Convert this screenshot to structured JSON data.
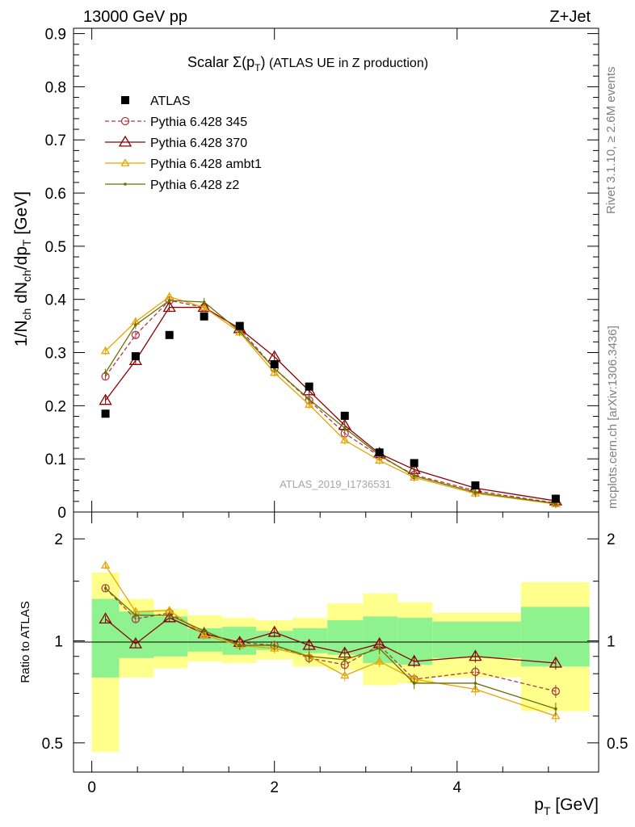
{
  "header": {
    "energy": "13000 GeV pp",
    "process": "Z+Jet"
  },
  "side_labels": {
    "rivet": "Rivet 3.1.10, ≥ 2.6M events",
    "mcplots": "mcplots.cern.ch [arXiv:1306.3436]"
  },
  "chart_data": [
    {
      "type": "scatter",
      "title_main": "Scalar Σ(p",
      "title_sub": "T",
      "title_close": ")",
      "title_rest": " (ATLAS UE in Z production)",
      "ylabel_parts": [
        "1/N",
        "ch",
        " dN",
        "ch",
        "/dp",
        "T",
        " [GeV]"
      ],
      "analysis_tag": "ATLAS_2019_I1736531",
      "xlim": [
        -0.2,
        5.55
      ],
      "ylim": [
        0,
        0.91
      ],
      "yticks": [
        0,
        0.1,
        0.2,
        0.3,
        0.4,
        0.5,
        0.6,
        0.7,
        0.8,
        0.9
      ],
      "ytick_labels": [
        "0",
        "0.1",
        "0.2",
        "0.3",
        "0.4",
        "0.5",
        "0.6",
        "0.7",
        "0.8",
        "0.9"
      ],
      "x": [
        0.15,
        0.48,
        0.85,
        1.23,
        1.62,
        2.0,
        2.38,
        2.77,
        3.15,
        3.53,
        4.2,
        5.08
      ],
      "data_name": "ATLAS",
      "data_values": [
        0.185,
        0.293,
        0.333,
        0.368,
        0.35,
        0.278,
        0.236,
        0.181,
        0.112,
        0.092,
        0.05,
        0.025
      ],
      "series": [
        {
          "name": "Pythia 6.428 345",
          "color": "#b03a48",
          "marker": "circle",
          "dashed": true,
          "values": [
            0.255,
            0.333,
            0.398,
            0.385,
            0.345,
            0.27,
            0.21,
            0.148,
            0.105,
            0.07,
            0.04,
            0.017
          ]
        },
        {
          "name": "Pythia 6.428 370",
          "color": "#8b0000",
          "marker": "triangle-big",
          "dashed": false,
          "values": [
            0.21,
            0.285,
            0.385,
            0.385,
            0.345,
            0.292,
            0.228,
            0.163,
            0.11,
            0.08,
            0.045,
            0.021
          ]
        },
        {
          "name": "Pythia 6.428 ambt1",
          "color": "#e8a400",
          "marker": "triangle",
          "dashed": false,
          "values": [
            0.303,
            0.358,
            0.405,
            0.385,
            0.338,
            0.262,
            0.202,
            0.135,
            0.097,
            0.065,
            0.035,
            0.015
          ]
        },
        {
          "name": "Pythia 6.428 z2",
          "color": "#6b7000",
          "marker": "dot",
          "dashed": false,
          "values": [
            0.262,
            0.352,
            0.398,
            0.395,
            0.34,
            0.27,
            0.212,
            0.158,
            0.107,
            0.068,
            0.037,
            0.016
          ]
        }
      ]
    },
    {
      "type": "line",
      "ylabel": "Ratio to ATLAS",
      "xlabel_main": "p",
      "xlabel_sub": "T",
      "xlabel_unit": " [GeV]",
      "xlim": [
        -0.2,
        5.55
      ],
      "ylim": [
        0.41,
        2.4
      ],
      "log_y": true,
      "xticks": [
        0,
        2,
        4
      ],
      "xtick_labels": [
        "0",
        "2",
        "4"
      ],
      "yticks": [
        0.5,
        1,
        2
      ],
      "ytick_labels": [
        "0.5",
        "1",
        "2"
      ],
      "band_bins": [
        [
          0.0,
          0.3
        ],
        [
          0.3,
          0.68
        ],
        [
          0.68,
          1.05
        ],
        [
          1.05,
          1.43
        ],
        [
          1.43,
          1.8
        ],
        [
          1.8,
          2.2
        ],
        [
          2.2,
          2.58
        ],
        [
          2.58,
          2.97
        ],
        [
          2.97,
          3.35
        ],
        [
          3.35,
          3.73
        ],
        [
          3.73,
          4.7
        ],
        [
          4.7,
          5.45
        ]
      ],
      "band_inner": [
        [
          0.78,
          1.33
        ],
        [
          0.89,
          1.22
        ],
        [
          0.9,
          1.18
        ],
        [
          0.93,
          1.09
        ],
        [
          0.91,
          1.1
        ],
        [
          0.94,
          1.07
        ],
        [
          0.92,
          1.09
        ],
        [
          0.91,
          1.15
        ],
        [
          0.86,
          1.18
        ],
        [
          0.85,
          1.17
        ],
        [
          0.89,
          1.14
        ],
        [
          0.84,
          1.26
        ]
      ],
      "band_outer": [
        [
          0.47,
          1.59
        ],
        [
          0.78,
          1.33
        ],
        [
          0.83,
          1.24
        ],
        [
          0.87,
          1.19
        ],
        [
          0.86,
          1.17
        ],
        [
          0.88,
          1.15
        ],
        [
          0.84,
          1.17
        ],
        [
          0.82,
          1.29
        ],
        [
          0.74,
          1.38
        ],
        [
          0.75,
          1.3
        ],
        [
          0.78,
          1.21
        ],
        [
          0.62,
          1.49
        ]
      ],
      "series": [
        {
          "name": "Pythia 6.428 345",
          "values": [
            1.43,
            1.16,
            1.21,
            1.05,
            0.99,
            0.97,
            0.89,
            0.85,
            0.97,
            0.77,
            0.81,
            0.71
          ]
        },
        {
          "name": "Pythia 6.428 370",
          "values": [
            1.16,
            0.98,
            1.17,
            1.05,
            0.99,
            1.06,
            0.97,
            0.92,
            0.98,
            0.87,
            0.9,
            0.86
          ]
        },
        {
          "name": "Pythia 6.428 ambt1",
          "values": [
            1.67,
            1.22,
            1.23,
            1.04,
            0.97,
            0.95,
            0.9,
            0.79,
            0.87,
            0.77,
            0.72,
            0.6
          ]
        },
        {
          "name": "Pythia 6.428 z2",
          "values": [
            1.43,
            1.19,
            1.19,
            1.07,
            0.97,
            0.97,
            0.9,
            0.88,
            0.95,
            0.75,
            0.75,
            0.63
          ]
        }
      ]
    }
  ]
}
